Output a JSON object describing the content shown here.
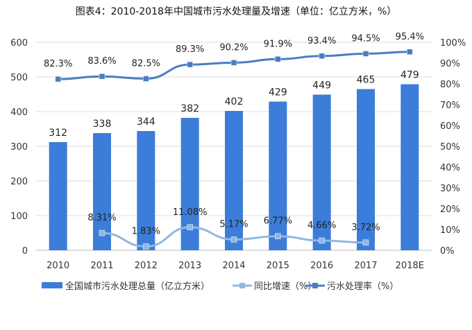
{
  "chart_data": {
    "type": "bar",
    "title": "图表4：2010-2018年中国城市污水处理量及增速（单位：亿立方米，%）",
    "categories": [
      "2010",
      "2011",
      "2012",
      "2013",
      "2014",
      "2015",
      "2016",
      "2017",
      "2018E"
    ],
    "series": [
      {
        "name": "全国城市污水处理总量（亿立方米）",
        "type": "bar",
        "axis": "left",
        "color": "#3b7dd8",
        "values": [
          312,
          338,
          344,
          382,
          402,
          429,
          449,
          465,
          479
        ],
        "labels": [
          "312",
          "338",
          "344",
          "382",
          "402",
          "429",
          "449",
          "465",
          "479"
        ]
      },
      {
        "name": "同比增速（%）",
        "type": "line",
        "axis": "right",
        "color": "#92b6e2",
        "values": [
          null,
          8.31,
          1.83,
          11.08,
          5.17,
          6.77,
          4.66,
          3.72,
          null
        ],
        "labels": [
          null,
          "8.31%",
          "1.83%",
          "11.08%",
          "5.17%",
          "6.77%",
          "4.66%",
          "3.72%",
          null
        ]
      },
      {
        "name": "污水处理率（%）",
        "type": "line",
        "axis": "right",
        "color": "#4a7cc4",
        "values": [
          82.3,
          83.6,
          82.5,
          89.3,
          90.2,
          91.9,
          93.4,
          94.5,
          95.4
        ],
        "labels": [
          "82.3%",
          "83.6%",
          "82.5%",
          "89.3%",
          "90.2%",
          "91.9%",
          "93.4%",
          "94.5%",
          "95.4%"
        ]
      }
    ],
    "left_axis": {
      "min": 0,
      "max": 600,
      "ticks": [
        "0",
        "100",
        "200",
        "300",
        "400",
        "500",
        "600"
      ]
    },
    "right_axis": {
      "min": 0,
      "max": 100,
      "ticks": [
        "0%",
        "10%",
        "20%",
        "30%",
        "40%",
        "50%",
        "60%",
        "70%",
        "80%",
        "90%",
        "100%"
      ]
    },
    "grid": true,
    "legend": "bottom"
  }
}
